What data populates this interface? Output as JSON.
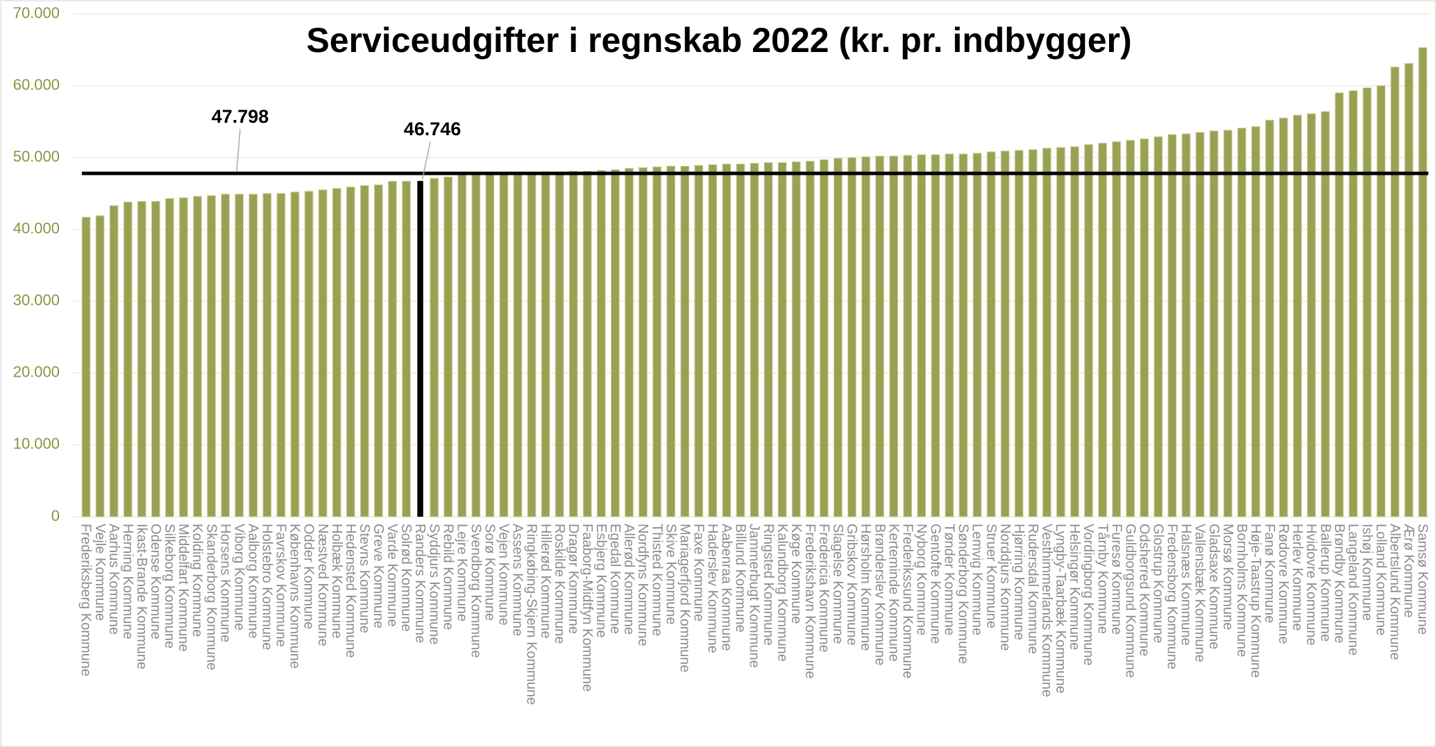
{
  "chart_data": {
    "type": "bar",
    "title": "Serviceudgifter i regnskab 2022 (kr. pr. indbygger)",
    "categories": [
      "Frederiksberg Kommune",
      "Vejle Kommune",
      "Aarhus Kommune",
      "Herning Kommune",
      "Ikast-Brande Kommune",
      "Odense Kommune",
      "Silkeborg Kommune",
      "Middelfart Kommune",
      "Kolding Kommune",
      "Skanderborg Kommune",
      "Horsens Kommune",
      "Viborg Kommune",
      "Aalborg Kommune",
      "Holstebro Kommune",
      "Favrskov Kommune",
      "Københavns Kommune",
      "Odder Kommune",
      "Næstved Kommune",
      "Holbæk Kommune",
      "Hedensted Kommune",
      "Stevns Kommune",
      "Greve Kommune",
      "Varde Kommune",
      "Solrød Kommune",
      "Randers Kommune",
      "Syddjurs Kommune",
      "Rebild Kommune",
      "Lejre Kommune",
      "Svendborg Kommune",
      "Sorø Kommune",
      "Vejen Kommune",
      "Assens Kommune",
      "Ringkøbing-Skjern Kommune",
      "Hillerød Kommune",
      "Roskilde Kommune",
      "Dragør Kommune",
      "Faaborg-Midtfyn Kommune",
      "Esbjerg Kommune",
      "Egedal Kommune",
      "Allerød Kommune",
      "Nordfyns Kommune",
      "Thisted Kommune",
      "Skive Kommune",
      "Mariagerfjord Kommune",
      "Faxe Kommune",
      "Haderslev Kommune",
      "Aabenraa Kommune",
      "Billund Kommune",
      "Jammerbugt Kommune",
      "Ringsted Kommune",
      "Kalundborg Kommune",
      "Køge Kommune",
      "Frederikshavn Kommune",
      "Fredericia Kommune",
      "Slagelse Kommune",
      "Gribskov Kommune",
      "Hørsholm Kommune",
      "Brønderslev Kommune",
      "Kerteminde Kommune",
      "Frederikssund Kommune",
      "Nyborg Kommune",
      "Gentofte Kommune",
      "Tønder Kommune",
      "Sønderborg Kommune",
      "Lemvig Kommune",
      "Struer Kommune",
      "Norddjurs Kommune",
      "Hjørring Kommune",
      "Rudersdal Kommune",
      "Vesthimmerlands Kommune",
      "Lyngby-Taarbæk Kommune",
      "Helsingør Kommune",
      "Vordingborg Kommune",
      "Tårnby Kommune",
      "Furesø Kommune",
      "Guldborgsund Kommune",
      "Odsherred Kommune",
      "Glostrup Kommune",
      "Fredensborg Kommune",
      "Halsnæs Kommune",
      "Vallensbæk Kommune",
      "Gladsaxe Kommune",
      "Morsø Kommune",
      "Bornholms Kommune",
      "Høje-Taastrup Kommune",
      "Fanø Kommune",
      "Rødovre Kommune",
      "Herlev Kommune",
      "Hvidovre Kommune",
      "Ballerup Kommune",
      "Brøndby Kommune",
      "Langeland Kommune",
      "Ishøj Kommune",
      "Lolland Kommune",
      "Albertslund Kommune",
      "Ærø Kommune",
      "Samsø Kommune"
    ],
    "values": [
      41700,
      41900,
      43300,
      43800,
      43900,
      43900,
      44300,
      44400,
      44600,
      44700,
      44900,
      44900,
      44900,
      45000,
      45000,
      45200,
      45300,
      45500,
      45700,
      45900,
      46100,
      46200,
      46700,
      46700,
      46746,
      47100,
      47300,
      47600,
      47700,
      47700,
      47800,
      47800,
      47900,
      48000,
      48000,
      48100,
      48100,
      48200,
      48300,
      48500,
      48600,
      48700,
      48800,
      48800,
      48900,
      49000,
      49100,
      49100,
      49200,
      49300,
      49300,
      49400,
      49500,
      49700,
      49900,
      50000,
      50100,
      50200,
      50200,
      50300,
      50400,
      50400,
      50500,
      50500,
      50600,
      50800,
      50900,
      51000,
      51100,
      51300,
      51400,
      51500,
      51800,
      52000,
      52200,
      52400,
      52600,
      52900,
      53200,
      53300,
      53500,
      53700,
      53800,
      54100,
      54300,
      55200,
      55500,
      55900,
      56100,
      56400,
      59000,
      59300,
      59700,
      60000,
      62600,
      63100,
      65300
    ],
    "color": "#9aa152",
    "ylim": [
      0,
      70000
    ],
    "yticks": [
      0,
      {
        "value": 10000,
        "label": "10.000"
      },
      {
        "value": 20000,
        "label": "20.000"
      },
      {
        "value": 30000,
        "label": "30.000"
      },
      {
        "value": 40000,
        "label": "40.000"
      },
      {
        "value": 50000,
        "label": "50.000"
      },
      {
        "value": 60000,
        "label": "60.000"
      },
      {
        "value": 70000,
        "label": "70.000"
      }
    ],
    "grid": true,
    "average": {
      "value": 47798,
      "label": "47.798",
      "color": "#000000"
    },
    "highlight": {
      "category": "Randers Kommune",
      "label": "46.746",
      "color": "#000000"
    }
  }
}
